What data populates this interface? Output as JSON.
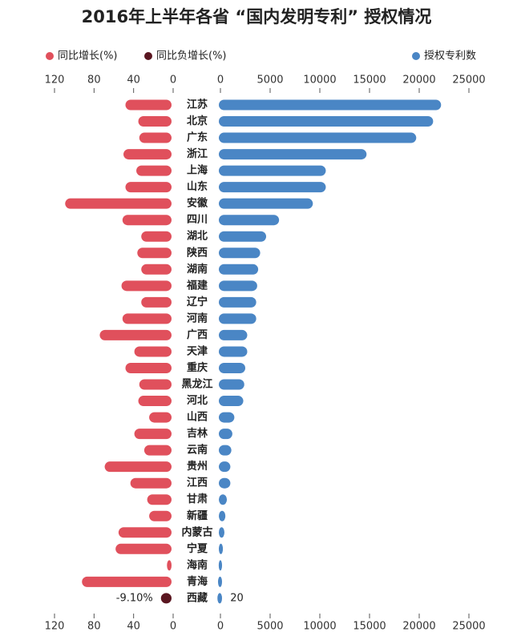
{
  "chart_data": {
    "type": "butterfly-bar",
    "title": "2016年上半年各省 “国内发明专利” 授权情况",
    "categories": [
      "江苏",
      "北京",
      "广东",
      "浙江",
      "上海",
      "山东",
      "安徽",
      "四川",
      "湖北",
      "陕西",
      "湖南",
      "福建",
      "辽宁",
      "河南",
      "广西",
      "天津",
      "重庆",
      "黑龙江",
      "河北",
      "山西",
      "吉林",
      "云南",
      "贵州",
      "江西",
      "甘肃",
      "新疆",
      "内蒙古",
      "宁夏",
      "海南",
      "青海",
      "西藏"
    ],
    "series": [
      {
        "name": "同比增长(%)",
        "color": "#e0505c",
        "axis": "x2",
        "values": [
          45,
          32,
          31,
          47,
          34,
          45,
          106,
          48,
          29,
          33,
          29,
          49,
          29,
          48,
          71,
          36,
          45,
          31,
          32,
          21,
          36,
          26,
          66,
          40,
          23,
          21,
          52,
          55,
          3,
          89,
          null
        ]
      },
      {
        "name": "同比负增长(%)",
        "color": "#5a1620",
        "axis": "x2",
        "values": [
          null,
          null,
          null,
          null,
          null,
          null,
          null,
          null,
          null,
          null,
          null,
          null,
          null,
          null,
          null,
          null,
          null,
          null,
          null,
          null,
          null,
          null,
          null,
          null,
          null,
          null,
          null,
          null,
          null,
          null,
          -9.1
        ],
        "value_labels": [
          null,
          null,
          null,
          null,
          null,
          null,
          null,
          null,
          null,
          null,
          null,
          null,
          null,
          null,
          null,
          null,
          null,
          null,
          null,
          null,
          null,
          null,
          null,
          null,
          null,
          null,
          null,
          null,
          null,
          null,
          "-9.10%"
        ]
      },
      {
        "name": "授权专利数",
        "color": "#4a86c5",
        "axis": "x",
        "values": [
          22200,
          21400,
          19700,
          14700,
          10600,
          10600,
          9300,
          5900,
          4600,
          4000,
          3800,
          3700,
          3600,
          3600,
          2700,
          2700,
          2500,
          2400,
          2300,
          1400,
          1200,
          1100,
          1000,
          1000,
          650,
          500,
          400,
          250,
          150,
          80,
          20
        ]
      }
    ],
    "xlim": [
      0,
      25000
    ],
    "xticks": [
      0,
      5000,
      10000,
      15000,
      20000,
      25000
    ],
    "x2lim": [
      0,
      120
    ],
    "x2ticks": [
      0,
      40,
      80,
      120
    ]
  }
}
